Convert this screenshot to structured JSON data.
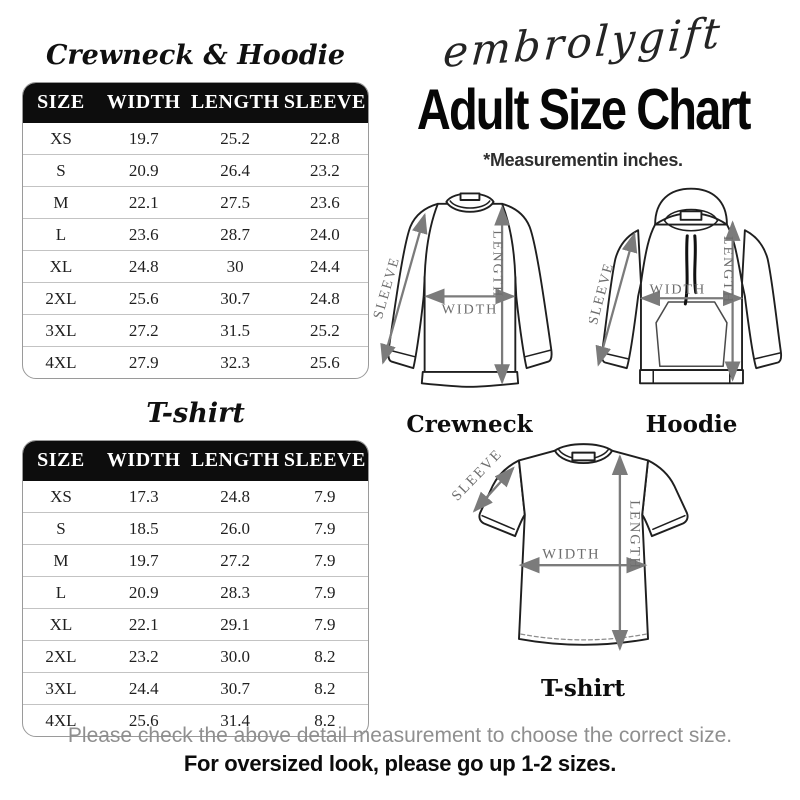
{
  "header": {
    "brand": "embrolygift",
    "title": "Adult Size Chart",
    "note": "*Measurementin inches."
  },
  "tables": [
    {
      "title": "Crewneck & Hoodie",
      "headers": [
        "SIZE",
        "WIDTH",
        "LENGTH",
        "SLEEVE"
      ],
      "rows": [
        [
          "XS",
          "19.7",
          "25.2",
          "22.8"
        ],
        [
          "S",
          "20.9",
          "26.4",
          "23.2"
        ],
        [
          "M",
          "22.1",
          "27.5",
          "23.6"
        ],
        [
          "L",
          "23.6",
          "28.7",
          "24.0"
        ],
        [
          "XL",
          "24.8",
          "30",
          "24.4"
        ],
        [
          "2XL",
          "25.6",
          "30.7",
          "24.8"
        ],
        [
          "3XL",
          "27.2",
          "31.5",
          "25.2"
        ],
        [
          "4XL",
          "27.9",
          "32.3",
          "25.6"
        ]
      ]
    },
    {
      "title": "T-shirt",
      "headers": [
        "SIZE",
        "WIDTH",
        "LENGTH",
        "SLEEVE"
      ],
      "rows": [
        [
          "XS",
          "17.3",
          "24.8",
          "7.9"
        ],
        [
          "S",
          "18.5",
          "26.0",
          "7.9"
        ],
        [
          "M",
          "19.7",
          "27.2",
          "7.9"
        ],
        [
          "L",
          "20.9",
          "28.3",
          "7.9"
        ],
        [
          "XL",
          "22.1",
          "29.1",
          "7.9"
        ],
        [
          "2XL",
          "23.2",
          "30.0",
          "8.2"
        ],
        [
          "3XL",
          "24.4",
          "30.7",
          "8.2"
        ],
        [
          "4XL",
          "25.6",
          "31.4",
          "8.2"
        ]
      ]
    }
  ],
  "diagrams": {
    "measure_labels": {
      "sleeve": "SLEEVE",
      "width": "WIDTH",
      "length": "LENGTH"
    },
    "captions": {
      "crewneck": "Crewneck",
      "hoodie": "Hoodie",
      "tshirt": "T-shirt"
    }
  },
  "footer": {
    "line1": "Please check the above detail measurement to choose the correct size.",
    "line2": "For oversized look, please go up 1-2 sizes."
  },
  "colors": {
    "table_header_bg": "#0d0d0d",
    "table_header_text": "#ffffff",
    "arrow": "#7b7b7b",
    "footer_gray": "#8f8f8f"
  }
}
